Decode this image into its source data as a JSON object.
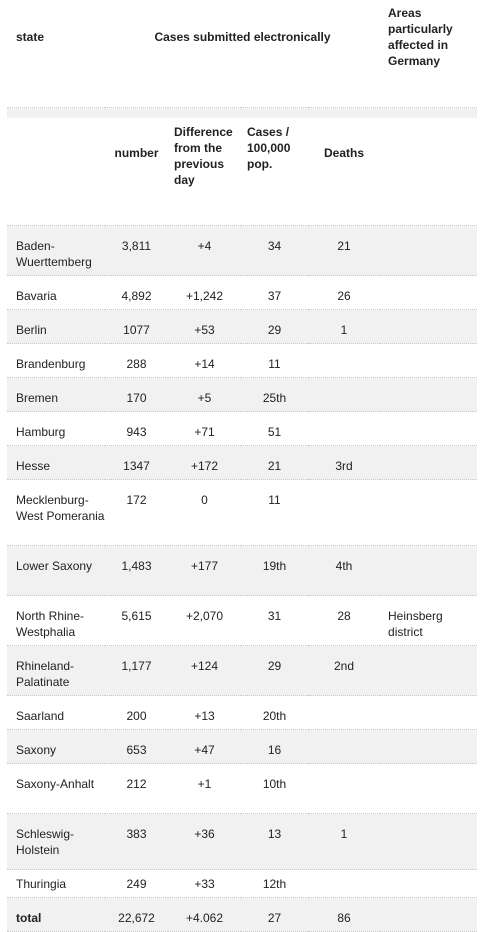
{
  "header": {
    "state": "state",
    "cases_group": "Cases submitted electronically",
    "areas": "Areas particularly affected in Germany",
    "number": "number",
    "difference": "Difference from the previous day",
    "cases_per_100k": "Cases / 100,000 pop.",
    "deaths": "Deaths"
  },
  "rows": [
    {
      "state": "Baden-Wuerttemberg",
      "number": "3,811",
      "difference": "+4",
      "cases_per_100k": "34",
      "deaths": "21",
      "areas": ""
    },
    {
      "state": "Bavaria",
      "number": "4,892",
      "difference": "+1,242",
      "cases_per_100k": "37",
      "deaths": "26",
      "areas": ""
    },
    {
      "state": "Berlin",
      "number": "1077",
      "difference": "+53",
      "cases_per_100k": "29",
      "deaths": "1",
      "areas": ""
    },
    {
      "state": "Brandenburg",
      "number": "288",
      "difference": "+14",
      "cases_per_100k": "11",
      "deaths": "",
      "areas": ""
    },
    {
      "state": "Bremen",
      "number": "170",
      "difference": "+5",
      "cases_per_100k": "25th",
      "deaths": "",
      "areas": ""
    },
    {
      "state": "Hamburg",
      "number": "943",
      "difference": "+71",
      "cases_per_100k": "51",
      "deaths": "",
      "areas": ""
    },
    {
      "state": "Hesse",
      "number": "1347",
      "difference": "+172",
      "cases_per_100k": "21",
      "deaths": "3rd",
      "areas": ""
    },
    {
      "state": "Mecklenburg-West Pomerania",
      "number": "172",
      "difference": "0",
      "cases_per_100k": "11",
      "deaths": "",
      "areas": ""
    },
    {
      "state": "Lower Saxony",
      "number": "1,483",
      "difference": "+177",
      "cases_per_100k": "19th",
      "deaths": "4th",
      "areas": ""
    },
    {
      "state": "North Rhine-Westphalia",
      "number": "5,615",
      "difference": "+2,070",
      "cases_per_100k": "31",
      "deaths": "28",
      "areas": "Heinsberg district"
    },
    {
      "state": "Rhineland-Palatinate",
      "number": "1,177",
      "difference": "+124",
      "cases_per_100k": "29",
      "deaths": "2nd",
      "areas": ""
    },
    {
      "state": "Saarland",
      "number": "200",
      "difference": "+13",
      "cases_per_100k": "20th",
      "deaths": "",
      "areas": ""
    },
    {
      "state": "Saxony",
      "number": "653",
      "difference": "+47",
      "cases_per_100k": "16",
      "deaths": "",
      "areas": ""
    },
    {
      "state": "Saxony-Anhalt",
      "number": "212",
      "difference": "+1",
      "cases_per_100k": "10th",
      "deaths": "",
      "areas": ""
    },
    {
      "state": "Schleswig-Holstein",
      "number": "383",
      "difference": "+36",
      "cases_per_100k": "13",
      "deaths": "1",
      "areas": ""
    },
    {
      "state": "Thuringia",
      "number": "249",
      "difference": "+33",
      "cases_per_100k": "12th",
      "deaths": "",
      "areas": ""
    }
  ],
  "total": {
    "state": "total",
    "number": "22,672",
    "difference": "+4.062",
    "cases_per_100k": "27",
    "deaths": "86",
    "areas": ""
  }
}
